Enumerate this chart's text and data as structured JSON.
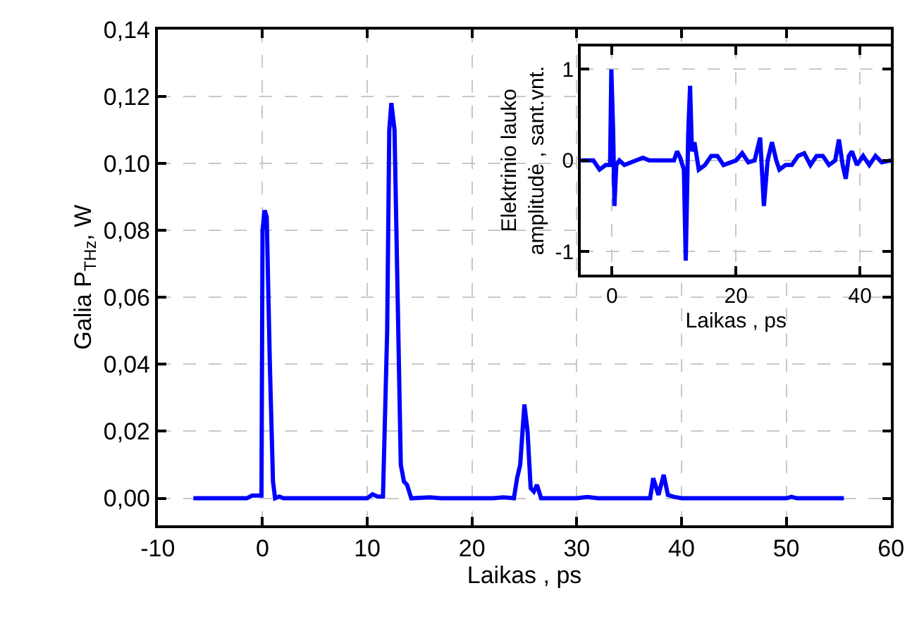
{
  "chart_data": [
    {
      "type": "line",
      "xlabel": "Laikas , ps",
      "ylabel": "Galia P$_{THz}$, W",
      "xlim": [
        -10,
        60
      ],
      "xticks": [
        -10,
        0,
        10,
        20,
        30,
        40,
        50,
        60
      ],
      "ylim": [
        -0.008,
        0.14
      ],
      "yticks": [
        {
          "value": 0,
          "label": "0,00"
        },
        {
          "value": 0.02,
          "label": "0,02"
        },
        {
          "value": 0.04,
          "label": "0,04"
        },
        {
          "value": 0.06,
          "label": "0,06"
        },
        {
          "value": 0.08,
          "label": "0,08"
        },
        {
          "value": 0.1,
          "label": "0,10"
        },
        {
          "value": 0.12,
          "label": "0,12"
        },
        {
          "value": 0.14,
          "label": "0,14"
        }
      ],
      "grid": true,
      "marker": "none",
      "line_style": "solid",
      "series": [
        {
          "color": "#0000ff",
          "x": [
            -6.6,
            -1.5,
            -1,
            -0.1,
            0.0,
            0.2,
            0.4,
            0.7,
            1.0,
            1.2,
            1.6,
            2,
            10,
            10.5,
            11,
            11.5,
            11.9,
            12.1,
            12.3,
            12.6,
            12.9,
            13.2,
            13.5,
            13.8,
            14.2,
            16,
            17,
            22,
            23,
            24,
            24.3,
            24.6,
            25.0,
            25.3,
            25.6,
            25.9,
            26.2,
            26.6,
            30,
            31,
            32,
            37,
            37.3,
            37.8,
            38.3,
            38.7,
            39.3,
            40,
            50,
            50.5,
            51,
            55.5
          ],
          "values": [
            0,
            0,
            0.0008,
            0.0008,
            0.08,
            0.086,
            0.084,
            0.04,
            0.005,
            0,
            0.0005,
            0,
            0,
            0.0012,
            0.0005,
            0.0005,
            0.05,
            0.11,
            0.118,
            0.11,
            0.06,
            0.01,
            0.005,
            0.004,
            0,
            0.0003,
            0,
            0,
            0.0003,
            0,
            0.006,
            0.01,
            0.028,
            0.02,
            0.003,
            0.002,
            0.004,
            0,
            0,
            0.0004,
            0,
            0,
            0.006,
            0.001,
            0.007,
            0.001,
            0.0004,
            0,
            0,
            0.0004,
            0,
            0
          ]
        }
      ]
    },
    {
      "type": "line",
      "xlabel": "Laikas , ps",
      "ylabel": "Elektrinio lauko\namplitudė , sant.vnt.",
      "xlim": [
        -5,
        45
      ],
      "xticks": [
        0,
        20,
        40
      ],
      "ylim": [
        -1.25,
        1.25
      ],
      "yticks": [
        -1,
        0,
        1
      ],
      "grid": true,
      "marker": "none",
      "line_style": "solid",
      "series": [
        {
          "color": "#0000ff",
          "x": [
            -5,
            -3,
            -2,
            -1,
            -0.3,
            -0.1,
            0.2,
            0.4,
            0.7,
            1.2,
            2,
            5,
            6,
            10,
            10.5,
            11,
            11.6,
            11.9,
            12.3,
            12.6,
            12.9,
            13.3,
            14,
            15,
            16,
            17,
            18,
            20,
            21,
            22,
            23,
            23.9,
            24.5,
            25.1,
            25.8,
            26.5,
            27,
            28,
            29,
            30,
            31,
            32,
            33,
            34,
            35,
            36,
            36.6,
            37.2,
            37.7,
            38.2,
            38.7,
            39.5,
            40.5,
            41.5,
            42.5,
            43.5,
            45
          ],
          "values": [
            0,
            0,
            -0.1,
            -0.05,
            -0.05,
            1.0,
            0.3,
            -0.5,
            -0.05,
            0,
            -0.05,
            0.03,
            0,
            0,
            0.1,
            0.03,
            -0.1,
            -1.1,
            0.3,
            0.82,
            0.1,
            0.2,
            -0.1,
            -0.05,
            0.05,
            0.05,
            -0.05,
            0,
            0.08,
            -0.02,
            0,
            0.25,
            -0.5,
            0,
            0.2,
            0,
            -0.1,
            -0.05,
            -0.05,
            0.05,
            0.08,
            -0.05,
            0.05,
            0.05,
            -0.05,
            0,
            0.23,
            -0.05,
            -0.2,
            0.05,
            0.1,
            -0.05,
            0.05,
            -0.05,
            0.05,
            -0.02,
            0
          ]
        }
      ]
    }
  ]
}
